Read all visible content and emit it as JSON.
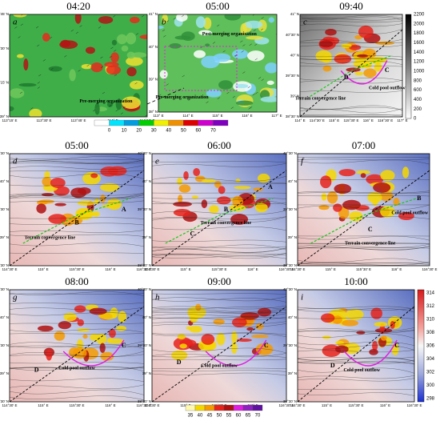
{
  "panels": [
    {
      "time": "04:20",
      "letter": "a",
      "notes": [
        "Pre-merging organization"
      ],
      "lat": [
        "39°45' N",
        "39°30' N",
        "39°15' N",
        "39° N"
      ],
      "lon": [
        "113°15' E",
        "113°30' E",
        "113°45' E",
        "114° E",
        "114°15' E"
      ]
    },
    {
      "time": "05:00",
      "letter": "b",
      "notes": [
        "Post-merging organization",
        "Pre-merging organization"
      ],
      "lat": [
        "41° N",
        "40° N",
        "39° N",
        "38° N"
      ],
      "lon": [
        "113° E",
        "114° E",
        "115° E",
        "116° E",
        "117° E"
      ]
    },
    {
      "time": "09:40",
      "letter": "c",
      "notes": [
        "D",
        "C",
        "Terrain convergence line",
        "Cold pool outflow"
      ],
      "lat": [
        "41° N",
        "40°30' N",
        "40° N",
        "39°30' N",
        "39° N",
        "38°30' N"
      ],
      "lon": [
        "114° E",
        "114°30' E",
        "115° E",
        "115°30' E",
        "116° E",
        "116°30' E",
        "117° E"
      ]
    },
    {
      "time": "05:00",
      "letter": "d",
      "notes": [
        "A",
        "B",
        "Terrain convergence line"
      ]
    },
    {
      "time": "06:00",
      "letter": "e",
      "notes": [
        "A",
        "B",
        "C",
        "Terrain convergence line"
      ]
    },
    {
      "time": "07:00",
      "letter": "f",
      "notes": [
        "B",
        "C",
        "Cold pool outflow",
        "Terrain convergence line"
      ]
    },
    {
      "time": "08:00",
      "letter": "g",
      "notes": [
        "C",
        "D",
        "Cold pool outflow"
      ]
    },
    {
      "time": "09:00",
      "letter": "h",
      "notes": [
        "C",
        "D",
        "Cold pool outflow"
      ]
    },
    {
      "time": "10:00",
      "letter": "i",
      "notes": [
        "C",
        "D",
        "Cold pool outflow"
      ]
    }
  ],
  "shared_axes": {
    "lat": [
      "40°30' N",
      "40° N",
      "39°30' N",
      "39° N",
      "38°30' N"
    ],
    "lon": [
      "114°30' E",
      "115° E",
      "115°30' E",
      "116° E",
      "116°30' E"
    ]
  },
  "reflectivity_bar": [
    0,
    10,
    20,
    30,
    40,
    50,
    60,
    70
  ],
  "terrain_bar": [
    2200,
    2000,
    1800,
    1600,
    1400,
    1200,
    1000,
    800,
    600,
    400,
    200,
    0
  ],
  "temperature_bar": [
    314,
    312,
    310,
    308,
    306,
    304,
    302,
    300,
    298
  ],
  "bottom_bar": [
    35,
    40,
    45,
    50,
    55,
    60,
    65,
    70
  ]
}
